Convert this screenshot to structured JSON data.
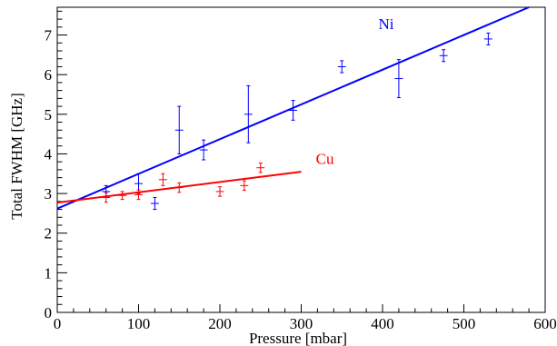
{
  "chart_data": {
    "type": "scatter",
    "xlabel": "Pressure [mbar]",
    "ylabel": "Total FWHM [GHz]",
    "xlim": [
      0,
      600
    ],
    "ylim": [
      0,
      7.7
    ],
    "x_ticks": [
      "0",
      "100",
      "200",
      "300",
      "400",
      "500",
      "600"
    ],
    "y_ticks": [
      "0",
      "1",
      "2",
      "3",
      "4",
      "5",
      "6",
      "7"
    ],
    "series": [
      {
        "name": "Ni",
        "color": "#0000ff",
        "points": [
          {
            "x": 60,
            "y": 3.05,
            "xerr": 5,
            "yerr": 0.15
          },
          {
            "x": 100,
            "y": 3.25,
            "xerr": 5,
            "yerr": 0.25
          },
          {
            "x": 120,
            "y": 2.75,
            "xerr": 5,
            "yerr": 0.15
          },
          {
            "x": 150,
            "y": 4.6,
            "xerr": 5,
            "yerr": 0.6
          },
          {
            "x": 180,
            "y": 4.1,
            "xerr": 5,
            "yerr": 0.25
          },
          {
            "x": 235,
            "y": 5.0,
            "xerr": 5,
            "yerr": 0.72
          },
          {
            "x": 290,
            "y": 5.1,
            "xerr": 5,
            "yerr": 0.25
          },
          {
            "x": 350,
            "y": 6.2,
            "xerr": 5,
            "yerr": 0.15
          },
          {
            "x": 420,
            "y": 5.9,
            "xerr": 5,
            "yerr": 0.48
          },
          {
            "x": 475,
            "y": 6.48,
            "xerr": 5,
            "yerr": 0.15
          },
          {
            "x": 530,
            "y": 6.9,
            "xerr": 5,
            "yerr": 0.15
          }
        ],
        "fit": {
          "x": [
            0,
            580
          ],
          "y": [
            2.62,
            7.7
          ]
        }
      },
      {
        "name": "Cu",
        "color": "#ff0000",
        "points": [
          {
            "x": 60,
            "y": 2.9,
            "xerr": 5,
            "yerr": 0.12
          },
          {
            "x": 80,
            "y": 2.95,
            "xerr": 5,
            "yerr": 0.1
          },
          {
            "x": 100,
            "y": 2.97,
            "xerr": 5,
            "yerr": 0.12
          },
          {
            "x": 130,
            "y": 3.35,
            "xerr": 5,
            "yerr": 0.15
          },
          {
            "x": 150,
            "y": 3.15,
            "xerr": 5,
            "yerr": 0.12
          },
          {
            "x": 200,
            "y": 3.05,
            "xerr": 5,
            "yerr": 0.12
          },
          {
            "x": 230,
            "y": 3.2,
            "xerr": 5,
            "yerr": 0.12
          },
          {
            "x": 250,
            "y": 3.65,
            "xerr": 5,
            "yerr": 0.12
          }
        ],
        "fit": {
          "x": [
            0,
            300
          ],
          "y": [
            2.77,
            3.55
          ]
        }
      }
    ],
    "annotations": [
      {
        "text": "Ni",
        "x": 395,
        "y": 7.15,
        "color": "#0000ff"
      },
      {
        "text": "Cu",
        "x": 318,
        "y": 3.75,
        "color": "#ff0000"
      }
    ]
  }
}
